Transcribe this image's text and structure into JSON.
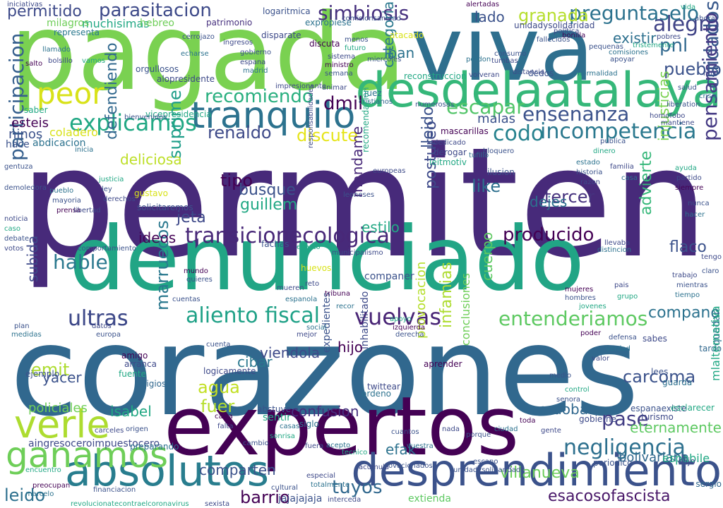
{
  "words": [
    {
      "text": "permiten",
      "color": "#472a7a"
    },
    {
      "text": "corazones",
      "color": "#31688e"
    },
    {
      "text": "denunciado",
      "color": "#21a585"
    },
    {
      "text": "pagada",
      "color": "#7ad151"
    },
    {
      "text": "viva",
      "color": "#2e6f8e"
    },
    {
      "text": "expertos",
      "color": "#440154"
    },
    {
      "text": "desdelaatalaya",
      "color": "#35b779"
    },
    {
      "text": "desprendimiento",
      "color": "#3b528b"
    },
    {
      "text": "absolutos",
      "color": "#287d8e"
    },
    {
      "text": "tranquilo",
      "color": "#2c728e"
    },
    {
      "text": "ganamos",
      "color": "#6ece58"
    },
    {
      "text": "verle",
      "color": "#addc30"
    },
    {
      "text": "transicionecologica",
      "color": "#482878"
    },
    {
      "text": "simbiosis",
      "color": "#46307e"
    },
    {
      "text": "parasitacion",
      "color": "#3e4a89"
    },
    {
      "text": "peor",
      "color": "#d8e219"
    },
    {
      "text": "explicamos",
      "color": "#22a884"
    },
    {
      "text": "incompetencia",
      "color": "#2a788e"
    },
    {
      "text": "ensenanza",
      "color": "#3b528b"
    },
    {
      "text": "aliento fiscal",
      "color": "#1fa187"
    },
    {
      "text": "vuelvas",
      "color": "#482475"
    },
    {
      "text": "negligencia",
      "color": "#2d708e"
    },
    {
      "text": "recomiendo",
      "color": "#29af7f"
    },
    {
      "text": "entenderiamos",
      "color": "#5ec962"
    },
    {
      "text": "producido",
      "color": "#440154"
    },
    {
      "text": "escapar",
      "color": "#52c569"
    },
    {
      "text": "alegro",
      "color": "#414487"
    },
    {
      "text": "cuidados",
      "color": "#38598c"
    },
    {
      "text": "codo",
      "color": "#26828e"
    },
    {
      "text": "participacion",
      "color": "#355f8d"
    },
    {
      "text": "pensamiento",
      "color": "#443983"
    },
    {
      "text": "preguntaselo",
      "color": "#2c728e"
    },
    {
      "text": "granada",
      "color": "#b5de2b"
    },
    {
      "text": "pase",
      "color": "#433e85"
    },
    {
      "text": "carcoma",
      "color": "#3b528b"
    },
    {
      "text": "tuyos",
      "color": "#31688e"
    },
    {
      "text": "barrio",
      "color": "#440154"
    },
    {
      "text": "ultras",
      "color": "#3e4989"
    },
    {
      "text": "esacosofascista",
      "color": "#481668"
    },
    {
      "text": "agua",
      "color": "#c2df23"
    },
    {
      "text": "leido",
      "color": "#2d708e"
    },
    {
      "text": "villanueva",
      "color": "#6ccd5a"
    },
    {
      "text": "comparten",
      "color": "#3b528b"
    },
    {
      "text": "suprime",
      "color": "#1f9e89"
    },
    {
      "text": "tercer",
      "color": "#46327e"
    },
    {
      "text": "like",
      "color": "#2d708e"
    },
    {
      "text": "marruecos",
      "color": "#2a788e"
    },
    {
      "text": "dmil",
      "color": "#440154"
    },
    {
      "text": "discute",
      "color": "#e5e419"
    },
    {
      "text": "renaldo",
      "color": "#3e4a89"
    },
    {
      "text": "tipo",
      "color": "#440154"
    },
    {
      "text": "busque",
      "color": "#3b528b"
    },
    {
      "text": "guillem",
      "color": "#22a884"
    },
    {
      "text": "jeta",
      "color": "#3e4989"
    },
    {
      "text": "hable",
      "color": "#2a788e"
    },
    {
      "text": "defendiendo",
      "color": "#31688e"
    },
    {
      "text": "ideos",
      "color": "#440154"
    },
    {
      "text": "advierte",
      "color": "#35b779"
    },
    {
      "text": "flaco",
      "color": "#3b528b"
    },
    {
      "text": "compano",
      "color": "#2c728e"
    },
    {
      "text": "cordoba",
      "color": "#31688e"
    },
    {
      "text": "isabel",
      "color": "#22a884"
    },
    {
      "text": "policiales",
      "color": "#6ece58"
    },
    {
      "text": "emit",
      "color": "#addc30"
    },
    {
      "text": "yacer",
      "color": "#3b528b"
    },
    {
      "text": "fuer",
      "color": "#b5de2b"
    },
    {
      "text": "viendola",
      "color": "#3e4a89"
    },
    {
      "text": "hijo",
      "color": "#440154"
    },
    {
      "text": "cibar",
      "color": "#2a788e"
    },
    {
      "text": "efak",
      "color": "#2c728e"
    },
    {
      "text": "confusion",
      "color": "#46307e"
    },
    {
      "text": "eternamente",
      "color": "#5ec962"
    },
    {
      "text": "bolivariana",
      "color": "#31688e"
    },
    {
      "text": "postureo",
      "color": "#3e4a89"
    },
    {
      "text": "cuerpo",
      "color": "#5ec962"
    },
    {
      "text": "mandame",
      "color": "#482878"
    },
    {
      "text": "malas",
      "color": "#3b528b"
    },
    {
      "text": "pueblo",
      "color": "#3b528b"
    },
    {
      "text": "pnl",
      "color": "#31688e"
    },
    {
      "text": "existir",
      "color": "#2d708e"
    },
    {
      "text": "iban",
      "color": "#2c728e"
    },
    {
      "text": "categoria",
      "color": "#2a788e"
    },
    {
      "text": "lado",
      "color": "#3b528b"
    },
    {
      "text": "injusticias",
      "color": "#7ad151"
    },
    {
      "text": "ultras",
      "color": "#3e4989"
    },
    {
      "text": "dejes",
      "color": "#2d708e"
    },
    {
      "text": "estilo",
      "color": "#22a884"
    },
    {
      "text": "permitido",
      "color": "#3e4a89"
    },
    {
      "text": "lleido",
      "color": "#3b528b"
    },
    {
      "text": "subida",
      "color": "#3e4989"
    },
    {
      "text": "deliciosa",
      "color": "#bddf26"
    },
    {
      "text": "esteis",
      "color": "#440154"
    },
    {
      "text": "ninos",
      "color": "#3b528b"
    },
    {
      "text": "coladero",
      "color": "#d8e219"
    },
    {
      "text": "hace",
      "color": "#3b528b"
    },
    {
      "text": "abdicacion",
      "color": "#2c728e"
    },
    {
      "text": "muchisimas",
      "color": "#22a884"
    },
    {
      "text": "hebreo",
      "color": "#6ece58"
    },
    {
      "text": "milagros",
      "color": "#6ece58"
    },
    {
      "text": "representa",
      "color": "#2a788e"
    },
    {
      "text": "patrimonio",
      "color": "#46307e"
    },
    {
      "text": "expropiese",
      "color": "#2c728e"
    },
    {
      "text": "logaritmica",
      "color": "#3b528b"
    },
    {
      "text": "unidadysolidaridad",
      "color": "#3e4a89"
    },
    {
      "text": "ejemplo",
      "color": "#3b528b"
    },
    {
      "text": "amigo",
      "color": "#440154"
    },
    {
      "text": "arranca",
      "color": "#3e4989"
    },
    {
      "text": "religiosos",
      "color": "#31688e"
    },
    {
      "text": "fuente",
      "color": "#22a884"
    },
    {
      "text": "logicamente",
      "color": "#3e4989"
    },
    {
      "text": "abstuve",
      "color": "#3b528b"
    },
    {
      "text": "siglo",
      "color": "#2d708e"
    },
    {
      "text": "sentir",
      "color": "#22a884"
    },
    {
      "text": "expedientes",
      "color": "#3b528b"
    },
    {
      "text": "inhabilitado",
      "color": "#3e4a89"
    },
    {
      "text": "twittear",
      "color": "#3e4a89"
    },
    {
      "text": "ordeno",
      "color": "#2c728e"
    },
    {
      "text": "aprender",
      "color": "#440154"
    },
    {
      "text": "conclusiones",
      "color": "#6ece58"
    },
    {
      "text": "provocacion",
      "color": "#b5de2b"
    },
    {
      "text": "infamias",
      "color": "#addc30"
    },
    {
      "text": "lees",
      "color": "#3b528b"
    },
    {
      "text": "guarda",
      "color": "#2d708e"
    },
    {
      "text": "sabes",
      "color": "#3e4a89"
    },
    {
      "text": "quedar",
      "color": "#2c728e"
    },
    {
      "text": "tardo",
      "color": "#31688e"
    },
    {
      "text": "espanaexiste",
      "color": "#3b528b"
    },
    {
      "text": "turismo",
      "color": "#3e4989"
    },
    {
      "text": "esclarecer",
      "color": "#22a884"
    },
    {
      "text": "espabile",
      "color": "#22a884"
    },
    {
      "text": "gobierne",
      "color": "#3e4a89"
    },
    {
      "text": "periodico",
      "color": "#3b528b"
    },
    {
      "text": "elijo",
      "color": "#3e4989"
    },
    {
      "text": "jajajajaja",
      "color": "#3b528b"
    },
    {
      "text": "interceda",
      "color": "#3e4a89"
    },
    {
      "text": "extienda",
      "color": "#5ec962"
    },
    {
      "text": "sexista",
      "color": "#3e4a89"
    },
    {
      "text": "revolucionatecontraelcoronavirus",
      "color": "#22a884"
    },
    {
      "text": "financiacion",
      "color": "#3b528b"
    },
    {
      "text": "marcelo",
      "color": "#2c728e"
    },
    {
      "text": "preocupan",
      "color": "#440154"
    },
    {
      "text": "aingresoceroimpuestocero",
      "color": "#3e4989"
    },
    {
      "text": "cuantos",
      "color": "#3b528b"
    },
    {
      "text": "vuestra",
      "color": "#2d708e"
    },
    {
      "text": "ovacionados",
      "color": "#3b528b"
    },
    {
      "text": "acumula",
      "color": "#3e4989"
    },
    {
      "text": "unidadysolidaridad",
      "color": "#3b528b"
    },
    {
      "text": "acepto",
      "color": "#2c728e"
    },
    {
      "text": "fuera",
      "color": "#3e4a89"
    },
    {
      "text": "tecnico",
      "color": "#22a884"
    },
    {
      "text": "mlalternativa",
      "color": "#22a884"
    },
    {
      "text": "sergio",
      "color": "#31688e"
    },
    {
      "text": "cultural",
      "color": "#3b528b"
    },
    {
      "text": "especial",
      "color": "#3e4989"
    },
    {
      "text": "totalmente",
      "color": "#2c728e"
    },
    {
      "text": "escano",
      "color": "#3b528b"
    },
    {
      "text": "preparando",
      "color": "#2c728e"
    },
    {
      "text": "origen",
      "color": "#3b528b"
    },
    {
      "text": "carceles",
      "color": "#3e4989"
    },
    {
      "text": "encuentro",
      "color": "#22a884"
    },
    {
      "text": "gustavo",
      "color": "#d8e219"
    },
    {
      "text": "solicitaremos",
      "color": "#3b528b"
    },
    {
      "text": "llevaba",
      "color": "#3e4989"
    },
    {
      "text": "distincion",
      "color": "#2c728e"
    },
    {
      "text": "comportamiento",
      "color": "#3b528b"
    },
    {
      "text": "municipalismo",
      "color": "#3e4a89"
    },
    {
      "text": "companer",
      "color": "#3b528b"
    },
    {
      "text": "huevos",
      "color": "#d8e219"
    },
    {
      "text": "reto",
      "color": "#3e4989"
    },
    {
      "text": "tribuna",
      "color": "#440154"
    },
    {
      "text": "recor",
      "color": "#2c728e"
    },
    {
      "text": "alertadas",
      "color": "#440154"
    },
    {
      "text": "comisionsanidad",
      "color": "#3b528b"
    },
    {
      "text": "disparate",
      "color": "#3e4a89"
    },
    {
      "text": "discuta",
      "color": "#440154"
    },
    {
      "text": "miercoles",
      "color": "#3b528b"
    },
    {
      "text": "juez",
      "color": "#2c728e"
    },
    {
      "text": "animar",
      "color": "#3e4989"
    },
    {
      "text": "cristianos",
      "color": "#31688e"
    },
    {
      "text": "fachas",
      "color": "#3b528b"
    },
    {
      "text": "exacto",
      "color": "#22a884"
    },
    {
      "text": "pobres",
      "color": "#3e4989"
    },
    {
      "text": "tristemente",
      "color": "#22a884"
    },
    {
      "text": "liberation",
      "color": "#3b528b"
    },
    {
      "text": "homofobo",
      "color": "#3e4989"
    },
    {
      "text": "mantiene",
      "color": "#3e4a89"
    },
    {
      "text": "bonilla",
      "color": "#440154"
    },
    {
      "text": "consumo",
      "color": "#3b528b"
    },
    {
      "text": "tumbas",
      "color": "#3e4989"
    },
    {
      "text": "perdon",
      "color": "#2c728e"
    },
    {
      "text": "dedos",
      "color": "#3b528b"
    },
    {
      "text": "distancia",
      "color": "#3e4a89"
    },
    {
      "text": "normalidad",
      "color": "#2c728e"
    },
    {
      "text": "apoyar",
      "color": "#3b528b"
    },
    {
      "text": "dedicado",
      "color": "#3e4989"
    },
    {
      "text": "bloquero",
      "color": "#3b528b"
    },
    {
      "text": "tufillo",
      "color": "#2c728e"
    },
    {
      "text": "ilusion",
      "color": "#3b528b"
    },
    {
      "text": "mascarillas",
      "color": "#440154"
    },
    {
      "text": "derogar",
      "color": "#3e4989"
    },
    {
      "text": "leitmotiv",
      "color": "#22a884"
    },
    {
      "text": "recomendacion",
      "color": "#22a884"
    },
    {
      "text": "europeas",
      "color": "#3e4a89"
    },
    {
      "text": "leoneses",
      "color": "#3b528b"
    },
    {
      "text": "responsabilidades",
      "color": "#3e4989"
    },
    {
      "text": "demoledora",
      "color": "#3b528b"
    },
    {
      "text": "iniciativas",
      "color": "#3e4a89"
    },
    {
      "text": "salto",
      "color": "#440154"
    },
    {
      "text": "gentuza",
      "color": "#3b528b"
    },
    {
      "text": "inicia",
      "color": "#2c728e"
    },
    {
      "text": "orgullosos",
      "color": "#3b528b"
    },
    {
      "text": "ingresos",
      "color": "#3e4989"
    },
    {
      "text": "cerrojazo",
      "color": "#3b528b"
    },
    {
      "text": "echarse",
      "color": "#2c728e"
    },
    {
      "text": "alopresidente",
      "color": "#3e4a89"
    },
    {
      "text": "vicepresidencia",
      "color": "#22a884"
    },
    {
      "text": "bienvenidos",
      "color": "#3b528b"
    },
    {
      "text": "impresionante",
      "color": "#3e4989"
    },
    {
      "text": "numerosas",
      "color": "#3b528b"
    },
    {
      "text": "reconstruccion",
      "color": "#22a884"
    },
    {
      "text": "voiveran",
      "color": "#3e4989"
    },
    {
      "text": "pequenas",
      "color": "#3b528b"
    },
    {
      "text": "comisiones",
      "color": "#2c728e"
    },
    {
      "text": "fallecidos",
      "color": "#3b528b"
    },
    {
      "text": "politica",
      "color": "#3e4989"
    },
    {
      "text": "atacado",
      "color": "#d8e219"
    },
    {
      "text": "saber",
      "color": "#22a884"
    },
    {
      "text": "mundo",
      "color": "#440154"
    },
    {
      "text": "quieres",
      "color": "#3b528b"
    },
    {
      "text": "mueren",
      "color": "#3e4a89"
    },
    {
      "text": "espanola",
      "color": "#2c728e"
    },
    {
      "text": "cuentas",
      "color": "#3b528b"
    },
    {
      "text": "llamado",
      "color": "#2c728e"
    },
    {
      "text": "bolsillo",
      "color": "#3e4989"
    },
    {
      "text": "vamos",
      "color": "#22a884"
    },
    {
      "text": "cuenta",
      "color": "#3b528b"
    },
    {
      "text": "carta",
      "color": "#440154"
    },
    {
      "text": "falta",
      "color": "#3e4989"
    },
    {
      "text": "casas",
      "color": "#2c728e"
    },
    {
      "text": "sonrisa",
      "color": "#22a884"
    },
    {
      "text": "cambio",
      "color": "#3b528b"
    },
    {
      "text": "nada",
      "color": "#3e4a89"
    },
    {
      "text": "porque",
      "color": "#3b528b"
    },
    {
      "text": "ciudad",
      "color": "#2c728e"
    },
    {
      "text": "toda",
      "color": "#440154"
    },
    {
      "text": "gente",
      "color": "#3e4989"
    },
    {
      "text": "senora",
      "color": "#3b528b"
    },
    {
      "text": "control",
      "color": "#22a884"
    },
    {
      "text": "medio",
      "color": "#3b528b"
    },
    {
      "text": "valor",
      "color": "#3e4989"
    },
    {
      "text": "verdad",
      "color": "#2c728e"
    },
    {
      "text": "defensa",
      "color": "#3b528b"
    },
    {
      "text": "poder",
      "color": "#440154"
    },
    {
      "text": "trabajo",
      "color": "#3e4a89"
    },
    {
      "text": "mientras",
      "color": "#3b528b"
    },
    {
      "text": "tiempo",
      "color": "#2c728e"
    },
    {
      "text": "pais",
      "color": "#3e4989"
    },
    {
      "text": "grupo",
      "color": "#22a884"
    },
    {
      "text": "claro",
      "color": "#3b528b"
    },
    {
      "text": "tengo",
      "color": "#3e4989"
    },
    {
      "text": "hacer",
      "color": "#2c728e"
    },
    {
      "text": "nunca",
      "color": "#3b528b"
    },
    {
      "text": "siempre",
      "color": "#440154"
    },
    {
      "text": "partido",
      "color": "#3e4a89"
    },
    {
      "text": "ayuda",
      "color": "#22a884"
    },
    {
      "text": "salud",
      "color": "#3b528b"
    },
    {
      "text": "crisis",
      "color": "#2c728e"
    },
    {
      "text": "hoy",
      "color": "#3e4989"
    },
    {
      "text": "ahora",
      "color": "#3b528b"
    },
    {
      "text": "vida",
      "color": "#22a884"
    },
    {
      "text": "gobierno",
      "color": "#3b528b"
    },
    {
      "text": "espana",
      "color": "#3e4989"
    },
    {
      "text": "madrid",
      "color": "#2c728e"
    },
    {
      "text": "ministro",
      "color": "#440154"
    },
    {
      "text": "semana",
      "color": "#3b528b"
    },
    {
      "text": "sistema",
      "color": "#3e4a89"
    },
    {
      "text": "futuro",
      "color": "#22a884"
    },
    {
      "text": "menos",
      "color": "#3b528b"
    },
    {
      "text": "mejor",
      "color": "#3e4989"
    },
    {
      "text": "social",
      "color": "#2c728e"
    },
    {
      "text": "derecha",
      "color": "#3b528b"
    },
    {
      "text": "izquierda",
      "color": "#440154"
    },
    {
      "text": "apoyo",
      "color": "#22a884"
    },
    {
      "text": "europa",
      "color": "#3b528b"
    },
    {
      "text": "datos",
      "color": "#3e4989"
    },
    {
      "text": "medidas",
      "color": "#2c728e"
    },
    {
      "text": "plan",
      "color": "#3b528b"
    },
    {
      "text": "noticia",
      "color": "#3e4a89"
    },
    {
      "text": "caso",
      "color": "#22a884"
    },
    {
      "text": "debate",
      "color": "#3b528b"
    },
    {
      "text": "votos",
      "color": "#3e4989"
    },
    {
      "text": "pueblo",
      "color": "#2c728e"
    },
    {
      "text": "mayoria",
      "color": "#3b528b"
    },
    {
      "text": "prensa",
      "color": "#440154"
    },
    {
      "text": "libertad",
      "color": "#3e4a89"
    },
    {
      "text": "justicia",
      "color": "#22a884"
    },
    {
      "text": "ley",
      "color": "#3b528b"
    },
    {
      "text": "derechos",
      "color": "#3e4989"
    },
    {
      "text": "estado",
      "color": "#2c728e"
    },
    {
      "text": "historia",
      "color": "#3b528b"
    },
    {
      "text": "razon",
      "color": "#3e4a89"
    },
    {
      "text": "dinero",
      "color": "#22a884"
    },
    {
      "text": "publica",
      "color": "#3b528b"
    },
    {
      "text": "familia",
      "color": "#3e4989"
    },
    {
      "text": "casa",
      "color": "#2c728e"
    },
    {
      "text": "mujeres",
      "color": "#440154"
    },
    {
      "text": "hombres",
      "color": "#3b528b"
    },
    {
      "text": "jovenes",
      "color": "#22a884"
    }
  ]
}
